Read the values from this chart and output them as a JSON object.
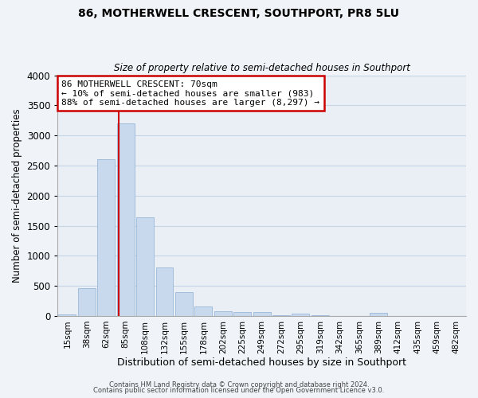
{
  "title": "86, MOTHERWELL CRESCENT, SOUTHPORT, PR8 5LU",
  "subtitle": "Size of property relative to semi-detached houses in Southport",
  "xlabel": "Distribution of semi-detached houses by size in Southport",
  "ylabel": "Number of semi-detached properties",
  "bin_labels": [
    "15sqm",
    "38sqm",
    "62sqm",
    "85sqm",
    "108sqm",
    "132sqm",
    "155sqm",
    "178sqm",
    "202sqm",
    "225sqm",
    "249sqm",
    "272sqm",
    "295sqm",
    "319sqm",
    "342sqm",
    "365sqm",
    "389sqm",
    "412sqm",
    "435sqm",
    "459sqm",
    "482sqm"
  ],
  "bar_values": [
    20,
    460,
    2600,
    3200,
    1640,
    800,
    390,
    155,
    80,
    70,
    60,
    10,
    40,
    10,
    0,
    0,
    50,
    0,
    0,
    0,
    0
  ],
  "bar_color": "#c8d9ed",
  "bar_edge_color": "#9ab8d8",
  "grid_color": "#c5d5e5",
  "bg_color": "#eaeff6",
  "vline_color": "#cc0000",
  "annotation_text": "86 MOTHERWELL CRESCENT: 70sqm\n← 10% of semi-detached houses are smaller (983)\n88% of semi-detached houses are larger (8,297) →",
  "annotation_box_color": "#ffffff",
  "annotation_box_edge": "#cc0000",
  "ylim": [
    0,
    4000
  ],
  "yticks": [
    0,
    500,
    1000,
    1500,
    2000,
    2500,
    3000,
    3500,
    4000
  ],
  "footer1": "Contains HM Land Registry data © Crown copyright and database right 2024.",
  "footer2": "Contains public sector information licensed under the Open Government Licence v3.0.",
  "fig_bg": "#f0f4f8"
}
